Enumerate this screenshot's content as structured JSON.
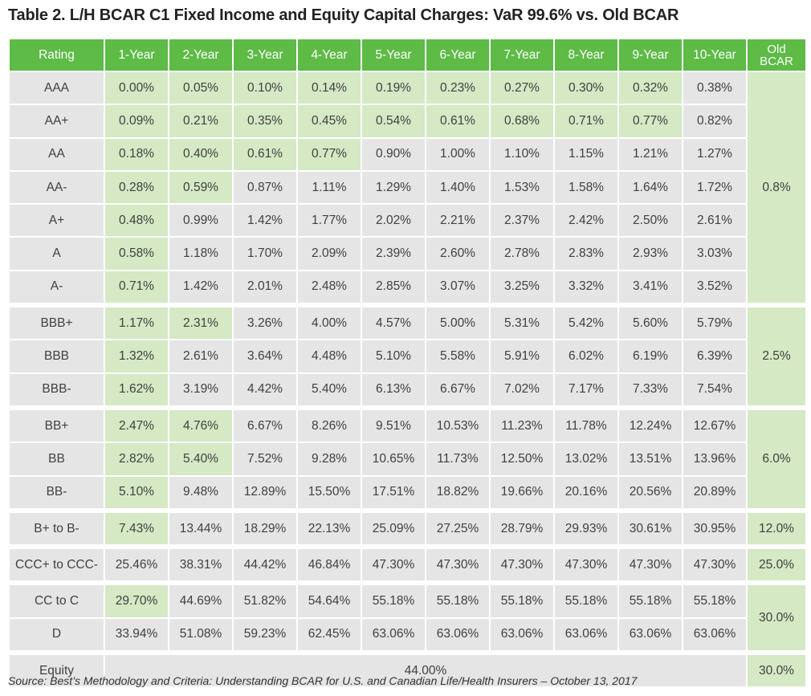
{
  "title": "Table 2. L/H BCAR C1 Fixed Income and Equity Capital Charges: VaR 99.6% vs. Old BCAR",
  "headers": {
    "rating": "Rating",
    "years": [
      "1-Year",
      "2-Year",
      "3-Year",
      "4-Year",
      "5-Year",
      "6-Year",
      "7-Year",
      "8-Year",
      "9-Year",
      "10-Year"
    ],
    "old_line1": "Old",
    "old_line2": "BCAR"
  },
  "colors": {
    "header_green": "#5dbb46",
    "highlight_green": "#d4e9c4",
    "cell_gray": "#e5e5e5"
  },
  "rows": [
    {
      "rating": "AAA",
      "values": [
        "0.00%",
        "0.05%",
        "0.10%",
        "0.14%",
        "0.19%",
        "0.23%",
        "0.27%",
        "0.30%",
        "0.32%",
        "0.38%"
      ]
    },
    {
      "rating": "AA+",
      "values": [
        "0.09%",
        "0.21%",
        "0.35%",
        "0.45%",
        "0.54%",
        "0.61%",
        "0.68%",
        "0.71%",
        "0.77%",
        "0.82%"
      ]
    },
    {
      "rating": "AA",
      "values": [
        "0.18%",
        "0.40%",
        "0.61%",
        "0.77%",
        "0.90%",
        "1.00%",
        "1.10%",
        "1.15%",
        "1.21%",
        "1.27%"
      ]
    },
    {
      "rating": "AA-",
      "values": [
        "0.28%",
        "0.59%",
        "0.87%",
        "1.11%",
        "1.29%",
        "1.40%",
        "1.53%",
        "1.58%",
        "1.64%",
        "1.72%"
      ]
    },
    {
      "rating": "A+",
      "values": [
        "0.48%",
        "0.99%",
        "1.42%",
        "1.77%",
        "2.02%",
        "2.21%",
        "2.37%",
        "2.42%",
        "2.50%",
        "2.61%"
      ]
    },
    {
      "rating": "A",
      "values": [
        "0.58%",
        "1.18%",
        "1.70%",
        "2.09%",
        "2.39%",
        "2.60%",
        "2.78%",
        "2.83%",
        "2.93%",
        "3.03%"
      ]
    },
    {
      "rating": "A-",
      "values": [
        "0.71%",
        "1.42%",
        "2.01%",
        "2.48%",
        "2.85%",
        "3.07%",
        "3.25%",
        "3.32%",
        "3.41%",
        "3.52%"
      ]
    },
    {
      "rating": "BBB+",
      "values": [
        "1.17%",
        "2.31%",
        "3.26%",
        "4.00%",
        "4.57%",
        "5.00%",
        "5.31%",
        "5.42%",
        "5.60%",
        "5.79%"
      ]
    },
    {
      "rating": "BBB",
      "values": [
        "1.32%",
        "2.61%",
        "3.64%",
        "4.48%",
        "5.10%",
        "5.58%",
        "5.91%",
        "6.02%",
        "6.19%",
        "6.39%"
      ]
    },
    {
      "rating": "BBB-",
      "values": [
        "1.62%",
        "3.19%",
        "4.42%",
        "5.40%",
        "6.13%",
        "6.67%",
        "7.02%",
        "7.17%",
        "7.33%",
        "7.54%"
      ]
    },
    {
      "rating": "BB+",
      "values": [
        "2.47%",
        "4.76%",
        "6.67%",
        "8.26%",
        "9.51%",
        "10.53%",
        "11.23%",
        "11.78%",
        "12.24%",
        "12.67%"
      ]
    },
    {
      "rating": "BB",
      "values": [
        "2.82%",
        "5.40%",
        "7.52%",
        "9.28%",
        "10.65%",
        "11.73%",
        "12.50%",
        "13.02%",
        "13.51%",
        "13.96%"
      ]
    },
    {
      "rating": "BB-",
      "values": [
        "5.10%",
        "9.48%",
        "12.89%",
        "15.50%",
        "17.51%",
        "18.82%",
        "19.66%",
        "20.16%",
        "20.56%",
        "20.89%"
      ]
    },
    {
      "rating": "B+ to B-",
      "values": [
        "7.43%",
        "13.44%",
        "18.29%",
        "22.13%",
        "25.09%",
        "27.25%",
        "28.79%",
        "29.93%",
        "30.61%",
        "30.95%"
      ]
    },
    {
      "rating": "CCC+ to CCC-",
      "values": [
        "25.46%",
        "38.31%",
        "44.42%",
        "46.84%",
        "47.30%",
        "47.30%",
        "47.30%",
        "47.30%",
        "47.30%",
        "47.30%"
      ]
    },
    {
      "rating": "CC to C",
      "values": [
        "29.70%",
        "44.69%",
        "51.82%",
        "54.64%",
        "55.18%",
        "55.18%",
        "55.18%",
        "55.18%",
        "55.18%",
        "55.18%"
      ]
    },
    {
      "rating": "D",
      "values": [
        "33.94%",
        "51.08%",
        "59.23%",
        "62.45%",
        "63.06%",
        "63.06%",
        "63.06%",
        "63.06%",
        "63.06%",
        "63.06%"
      ]
    }
  ],
  "highlights": [
    [
      0,
      1,
      2,
      3,
      4,
      5,
      6,
      7,
      8
    ],
    [
      0,
      1,
      2,
      3,
      4,
      5,
      6,
      7,
      8
    ],
    [
      0,
      1,
      2,
      3
    ],
    [
      0,
      1
    ],
    [
      0
    ],
    [
      0
    ],
    [
      0
    ],
    [
      0,
      1
    ],
    [
      0
    ],
    [
      0
    ],
    [
      0,
      1
    ],
    [
      0,
      1
    ],
    [
      0
    ],
    [
      0
    ],
    [],
    [
      0
    ],
    []
  ],
  "old_bcar_groups": [
    {
      "rows": 7,
      "value": "0.8%"
    },
    {
      "rows": 3,
      "value": "2.5%"
    },
    {
      "rows": 3,
      "value": "6.0%"
    },
    {
      "rows": 1,
      "value": "12.0%"
    },
    {
      "rows": 1,
      "value": "25.0%"
    },
    {
      "rows": 2,
      "value": "30.0%"
    }
  ],
  "equity": {
    "rating": "Equity",
    "value": "44.00%",
    "old": "30.0%"
  },
  "source": "Source: Best’s Methodology and Criteria: Understanding BCAR for U.S. and Canadian Life/Health Insurers – October 13, 2017"
}
